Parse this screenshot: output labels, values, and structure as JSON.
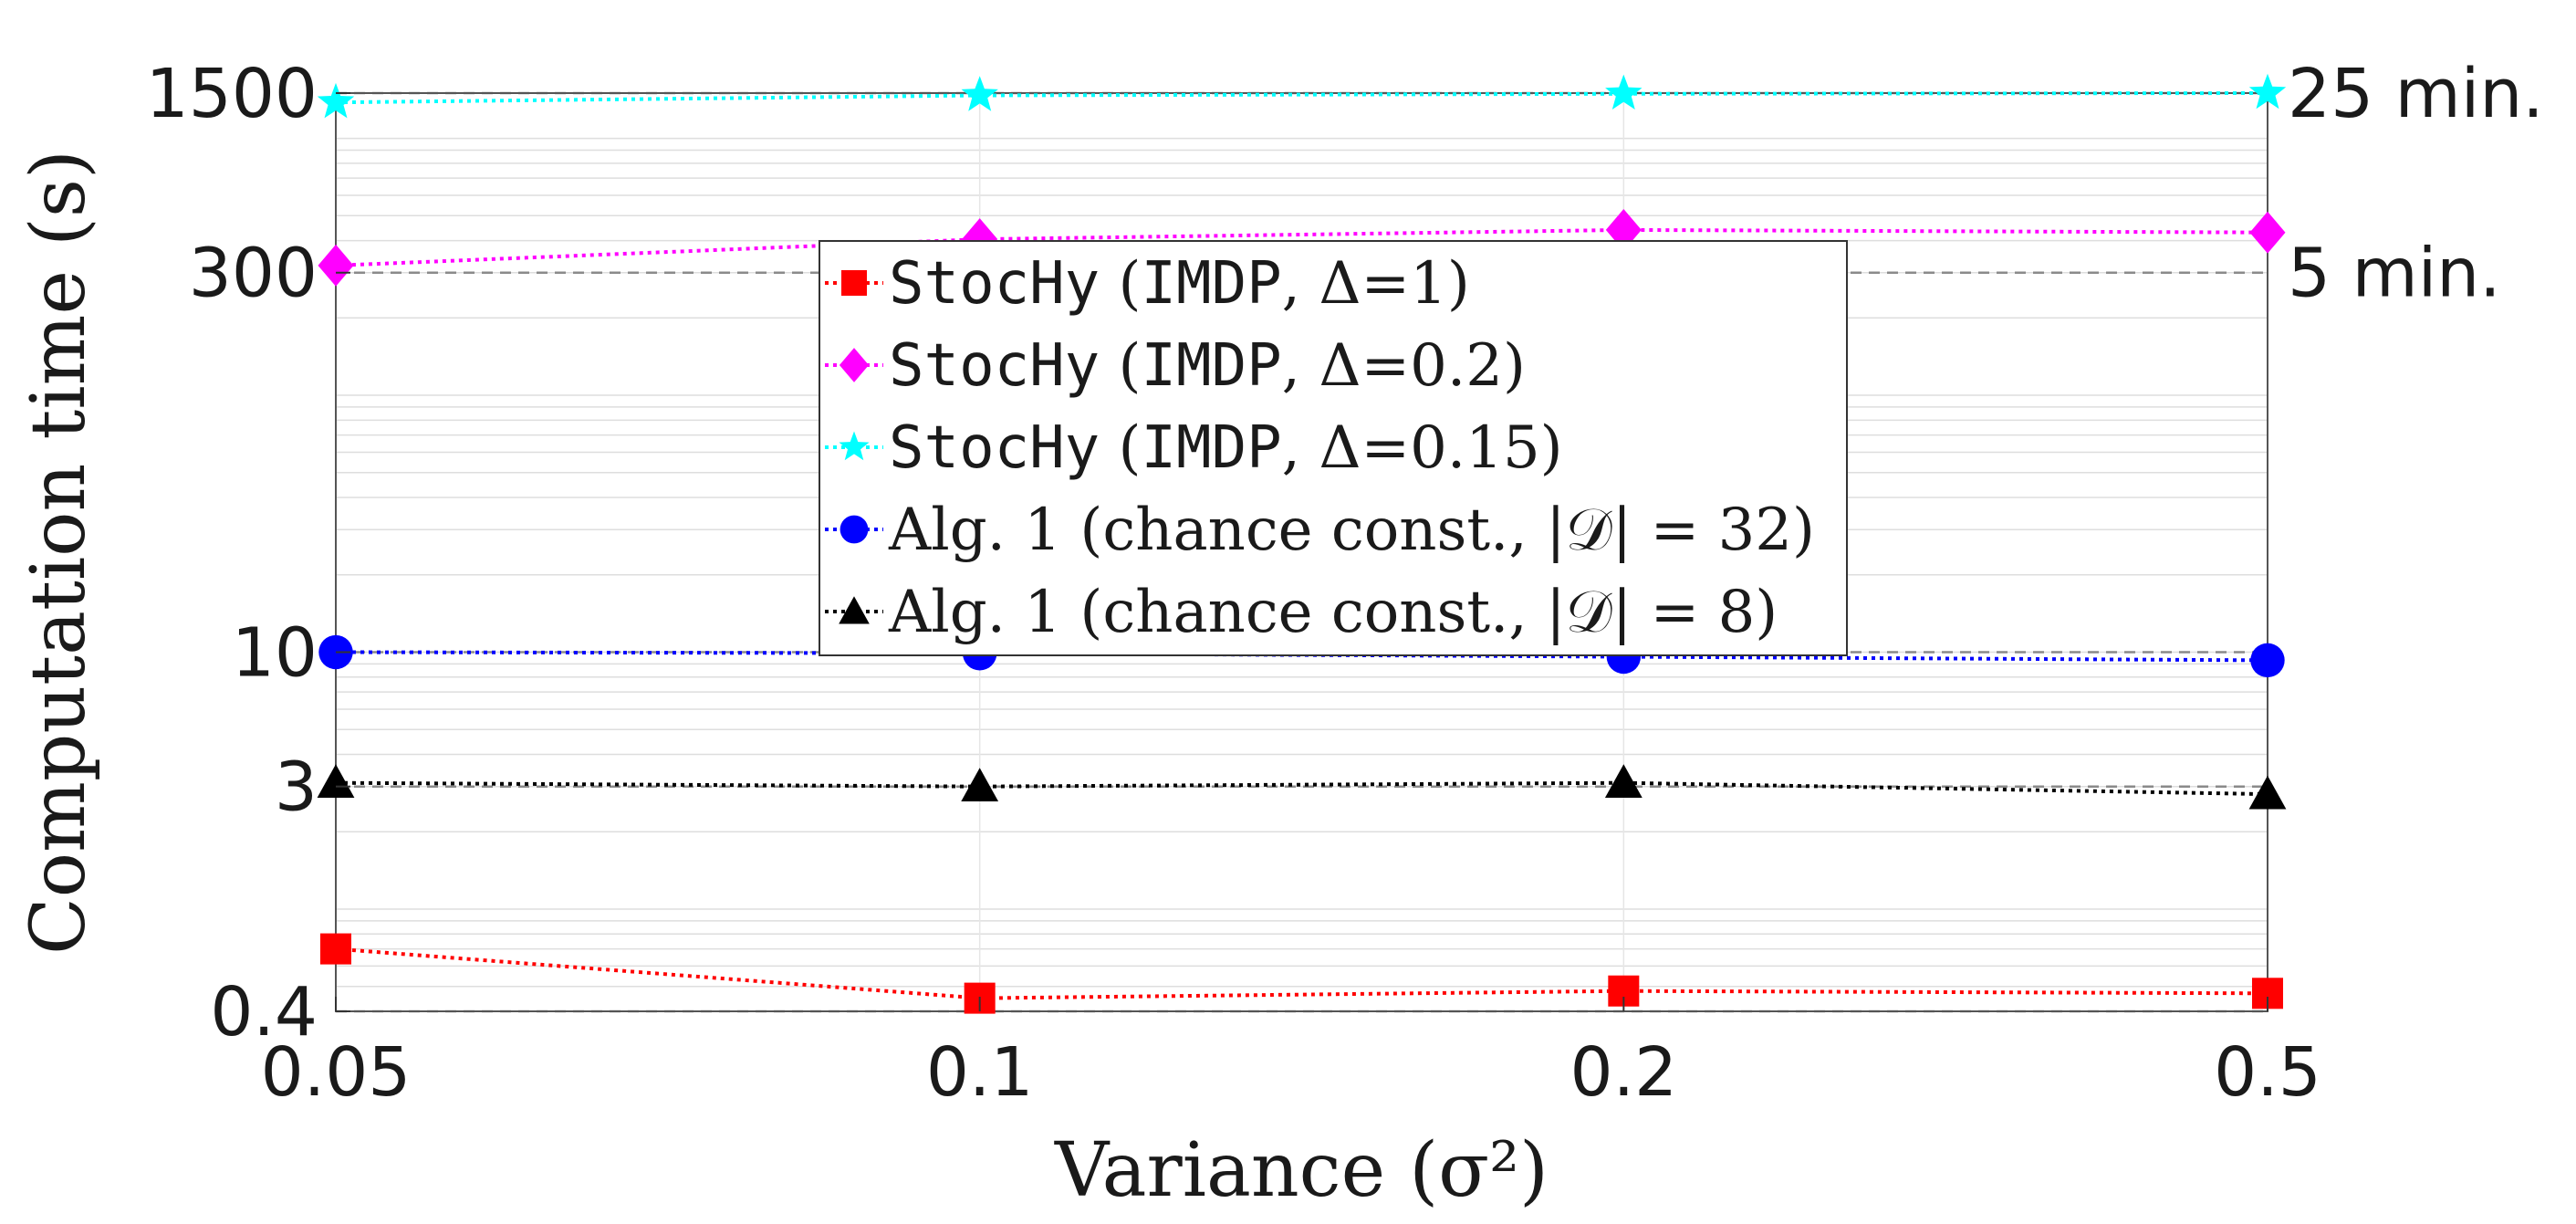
{
  "chart_data": {
    "type": "line",
    "xlabel": "Variance (σ²)",
    "ylabel": "Computation time (s)",
    "y_scale": "log",
    "ylim": [
      0.4,
      1500
    ],
    "categories": [
      "0.05",
      "0.1",
      "0.2",
      "0.5"
    ],
    "y_ticks": [
      "0.4",
      "3",
      "10",
      "300",
      "1500"
    ],
    "secondary_y_ticks": [
      {
        "value": 300,
        "label": "5 min."
      },
      {
        "value": 1500,
        "label": "25 min."
      }
    ],
    "grid": true,
    "legend_position": "center",
    "series": [
      {
        "name_prefix": "StocHy",
        "name": " (IMDP, Δ=1)",
        "name_mono_part": "IMDP",
        "color": "#ff0000",
        "marker": "square",
        "values": [
          0.7,
          0.45,
          0.48,
          0.47
        ]
      },
      {
        "name_prefix": "StocHy",
        "name": " (IMDP, Δ=0.2)",
        "name_mono_part": "IMDP",
        "color": "#ff00ff",
        "marker": "diamond",
        "values": [
          320,
          405,
          440,
          430
        ]
      },
      {
        "name_prefix": "StocHy",
        "name": " (IMDP, Δ=0.15)",
        "name_mono_part": "IMDP",
        "color": "#00ffff",
        "marker": "star",
        "values": [
          1380,
          1470,
          1490,
          1500
        ]
      },
      {
        "name_prefix": "",
        "name": "Alg. 1 (chance const., |𝒟| = 32)",
        "color": "#0000ff",
        "marker": "circle",
        "values": [
          10,
          9.9,
          9.6,
          9.3
        ]
      },
      {
        "name_prefix": "",
        "name": "Alg. 1 (chance const., |𝒟| = 8)",
        "color": "#000000",
        "marker": "triangle",
        "values": [
          3.1,
          3.0,
          3.1,
          2.8
        ]
      }
    ]
  }
}
